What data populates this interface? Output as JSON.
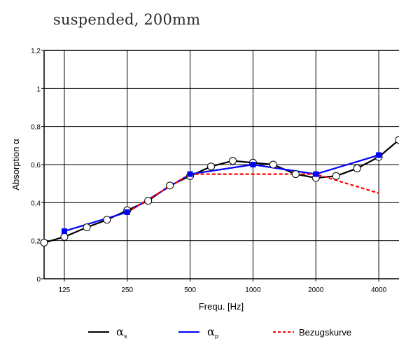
{
  "page_title": "suspended, 200mm",
  "chart_data": {
    "type": "line",
    "title": "suspended, 200mm",
    "xlabel": "Frequ. [Hz]",
    "ylabel": "Absorption α",
    "x_scale": "log",
    "xlim": [
      100,
      5000
    ],
    "ylim": [
      0,
      1.2
    ],
    "grid": true,
    "x_ticks": [
      125,
      250,
      500,
      1000,
      2000,
      4000
    ],
    "x_tick_labels": [
      "125",
      "250",
      "500",
      "1000",
      "2000",
      "4000"
    ],
    "y_ticks": [
      0,
      0.2,
      0.4,
      0.6,
      0.8,
      1.0,
      1.2
    ],
    "y_tick_labels": [
      "0",
      "0,2",
      "0,4",
      "0,6",
      "0,8",
      "1",
      "1,2"
    ],
    "legend_position": "bottom",
    "series": [
      {
        "name": "αs",
        "legend_symbol": "α",
        "legend_subscript": "s",
        "color": "#000000",
        "style": "solid",
        "marker": "circle-open",
        "x": [
          100,
          125,
          160,
          200,
          250,
          315,
          400,
          500,
          630,
          800,
          1000,
          1250,
          1600,
          2000,
          2500,
          3150,
          4000,
          5000
        ],
        "y": [
          0.19,
          0.22,
          0.27,
          0.31,
          0.36,
          0.41,
          0.49,
          0.54,
          0.59,
          0.62,
          0.61,
          0.6,
          0.55,
          0.53,
          0.54,
          0.58,
          0.64,
          0.73
        ]
      },
      {
        "name": "αp",
        "legend_symbol": "α",
        "legend_subscript": "p",
        "color": "#0000ff",
        "style": "solid",
        "marker": "square-filled",
        "x": [
          125,
          250,
          500,
          1000,
          2000,
          4000
        ],
        "y": [
          0.25,
          0.35,
          0.55,
          0.6,
          0.55,
          0.65
        ]
      },
      {
        "name": "Bezugskurve",
        "color": "#ff0000",
        "style": "dashed",
        "marker": "none",
        "x": [
          250,
          500,
          1000,
          2000,
          4000
        ],
        "y": [
          0.35,
          0.55,
          0.55,
          0.55,
          0.45
        ]
      }
    ]
  }
}
